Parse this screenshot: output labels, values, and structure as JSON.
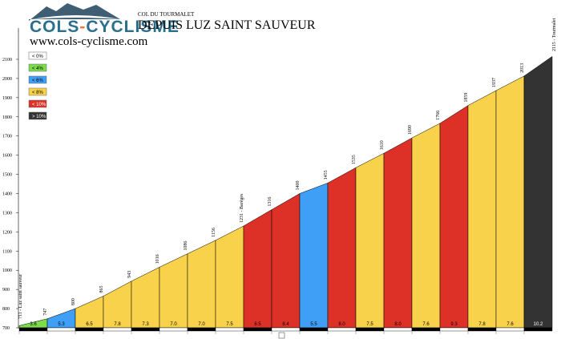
{
  "header": {
    "logo_text_left": "COLS",
    "logo_text_dash": "-",
    "logo_text_right": "CYCLISME",
    "website": "www.cols-cyclisme.com",
    "subtitle": "COL DU TOURMALET",
    "title": "DEPUIS LUZ SAINT SAUVEUR"
  },
  "colors": {
    "lt4": "#7ddc4c",
    "lt6": "#3f9ef5",
    "lt8": "#f8d24a",
    "lt10": "#dd3026",
    "gt10": "#333333",
    "lt0": "#ffffff",
    "logo_blue": "#2a6f8d",
    "logo_orange": "#f07c32"
  },
  "legend": [
    {
      "label": "< 0%",
      "color_key": "lt0"
    },
    {
      "label": "< 4%",
      "color_key": "lt4"
    },
    {
      "label": "< 6%",
      "color_key": "lt6"
    },
    {
      "label": "< 8%",
      "color_key": "lt8"
    },
    {
      "label": "< 10%",
      "color_key": "lt10"
    },
    {
      "label": "> 10%",
      "color_key": "gt10"
    }
  ],
  "chart_data": {
    "type": "area",
    "ylim": [
      700,
      2100
    ],
    "y_ticks": [
      700,
      800,
      900,
      1000,
      1100,
      1200,
      1300,
      1400,
      1500,
      1600,
      1700,
      1800,
      1900,
      2000,
      2100
    ],
    "km_count": 19,
    "start_altitude": 711,
    "start_label": "711 - Luz saint sauveur",
    "summit_label": "2115 - Tourmalet",
    "segments": [
      {
        "grade": "3.6",
        "class": "lt4",
        "end_alt": 747,
        "alt_label": "747"
      },
      {
        "grade": "5.3",
        "class": "lt6",
        "end_alt": 800,
        "alt_label": "800"
      },
      {
        "grade": "6.5",
        "class": "lt8",
        "end_alt": 865,
        "alt_label": "865"
      },
      {
        "grade": "7.8",
        "class": "lt8",
        "end_alt": 943,
        "alt_label": "943"
      },
      {
        "grade": "7.3",
        "class": "lt8",
        "end_alt": 1016,
        "alt_label": "1016"
      },
      {
        "grade": "7.0",
        "class": "lt8",
        "end_alt": 1086,
        "alt_label": "1086"
      },
      {
        "grade": "7.0",
        "class": "lt8",
        "end_alt": 1156,
        "alt_label": "1156"
      },
      {
        "grade": "7.5",
        "class": "lt8",
        "end_alt": 1231,
        "alt_label": "1231 - Barèges"
      },
      {
        "grade": "8.5",
        "class": "lt10",
        "end_alt": 1316,
        "alt_label": "1316"
      },
      {
        "grade": "8.4",
        "class": "lt10",
        "end_alt": 1400,
        "alt_label": "1400"
      },
      {
        "grade": "5.5",
        "class": "lt6",
        "end_alt": 1455,
        "alt_label": "1455"
      },
      {
        "grade": "8.0",
        "class": "lt10",
        "end_alt": 1535,
        "alt_label": "1535"
      },
      {
        "grade": "7.5",
        "class": "lt8",
        "end_alt": 1610,
        "alt_label": "1610"
      },
      {
        "grade": "8.0",
        "class": "lt10",
        "end_alt": 1690,
        "alt_label": "1690"
      },
      {
        "grade": "7.6",
        "class": "lt8",
        "end_alt": 1766,
        "alt_label": "1766"
      },
      {
        "grade": "9.3",
        "class": "lt10",
        "end_alt": 1859,
        "alt_label": "1859"
      },
      {
        "grade": "7.8",
        "class": "lt8",
        "end_alt": 1937,
        "alt_label": "1937"
      },
      {
        "grade": "7.6",
        "class": "lt8",
        "end_alt": 2013,
        "alt_label": "2013"
      },
      {
        "grade": "10.2",
        "class": "gt10",
        "end_alt": 2115,
        "alt_label": "2115 - Tourmalet"
      }
    ]
  }
}
